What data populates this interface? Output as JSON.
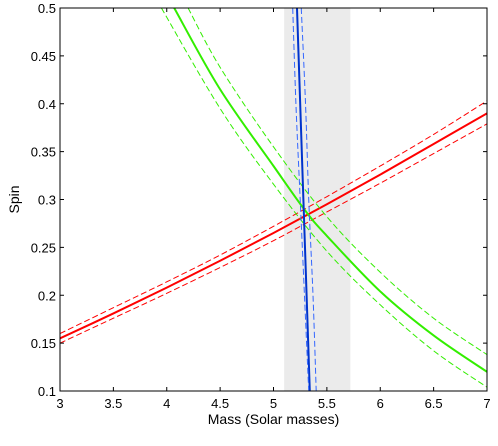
{
  "chart_data": {
    "type": "line",
    "title": "",
    "xlabel": "Mass (Solar masses)",
    "ylabel": "Spin",
    "xlim": [
      3,
      7
    ],
    "ylim": [
      0.1,
      0.5
    ],
    "xticks": [
      3,
      3.5,
      4,
      4.5,
      5,
      5.5,
      6,
      6.5,
      7
    ],
    "yticks": [
      0.1,
      0.15,
      0.2,
      0.25,
      0.3,
      0.35,
      0.4,
      0.45,
      0.5
    ],
    "xtick_labels": [
      "3",
      "3.5",
      "4",
      "4.5",
      "5",
      "5.5",
      "6",
      "6.5",
      "7"
    ],
    "ytick_labels": [
      "0.1",
      "0.15",
      "0.2",
      "0.25",
      "0.3",
      "0.35",
      "0.4",
      "0.45",
      "0.5"
    ],
    "grid": false,
    "shaded_band": {
      "x_range": [
        5.1,
        5.72
      ],
      "color": "#ebebeb"
    },
    "series": [
      {
        "color": "#ff0000",
        "style": "solid",
        "x": [
          3,
          3.5,
          4,
          4.5,
          5,
          5.5,
          6,
          6.5,
          7
        ],
        "y": [
          0.155,
          0.181,
          0.208,
          0.236,
          0.265,
          0.295,
          0.326,
          0.358,
          0.39
        ]
      },
      {
        "color": "#ff0000",
        "style": "dashed",
        "x": [
          3,
          3.5,
          4,
          4.5,
          5,
          5.5,
          6,
          6.5,
          7
        ],
        "y": [
          0.16,
          0.187,
          0.214,
          0.242,
          0.272,
          0.303,
          0.335,
          0.368,
          0.403
        ]
      },
      {
        "color": "#ff0000",
        "style": "dashed",
        "x": [
          3,
          3.5,
          4,
          4.5,
          5,
          5.5,
          6,
          6.5,
          7
        ],
        "y": [
          0.15,
          0.176,
          0.202,
          0.229,
          0.257,
          0.287,
          0.317,
          0.348,
          0.379
        ]
      },
      {
        "color": "#33ee00",
        "style": "solid",
        "x": [
          4.07,
          4.5,
          5,
          5.3,
          5.5,
          6,
          6.5,
          7
        ],
        "y": [
          0.5,
          0.415,
          0.335,
          0.288,
          0.262,
          0.204,
          0.158,
          0.12
        ]
      },
      {
        "color": "#33ee00",
        "style": "dashed",
        "x": [
          4.2,
          4.5,
          5,
          5.5,
          6,
          6.5,
          7
        ],
        "y": [
          0.5,
          0.438,
          0.355,
          0.282,
          0.224,
          0.176,
          0.138
        ]
      },
      {
        "color": "#33ee00",
        "style": "dashed",
        "x": [
          3.95,
          4.5,
          5,
          5.5,
          6,
          6.5,
          7
        ],
        "y": [
          0.5,
          0.395,
          0.316,
          0.246,
          0.19,
          0.142,
          0.104
        ]
      },
      {
        "color": "#0033cc",
        "style": "solid",
        "x": [
          5.22,
          5.25,
          5.28,
          5.31,
          5.34
        ],
        "y": [
          0.5,
          0.4,
          0.3,
          0.2,
          0.1
        ]
      },
      {
        "color": "#3366ff",
        "style": "dashed",
        "x": [
          5.18,
          5.21,
          5.25,
          5.29,
          5.33
        ],
        "y": [
          0.5,
          0.4,
          0.3,
          0.2,
          0.1
        ]
      },
      {
        "color": "#3366ff",
        "style": "dashed",
        "x": [
          5.26,
          5.3,
          5.33,
          5.37,
          5.4
        ],
        "y": [
          0.5,
          0.4,
          0.3,
          0.2,
          0.1
        ]
      }
    ]
  }
}
